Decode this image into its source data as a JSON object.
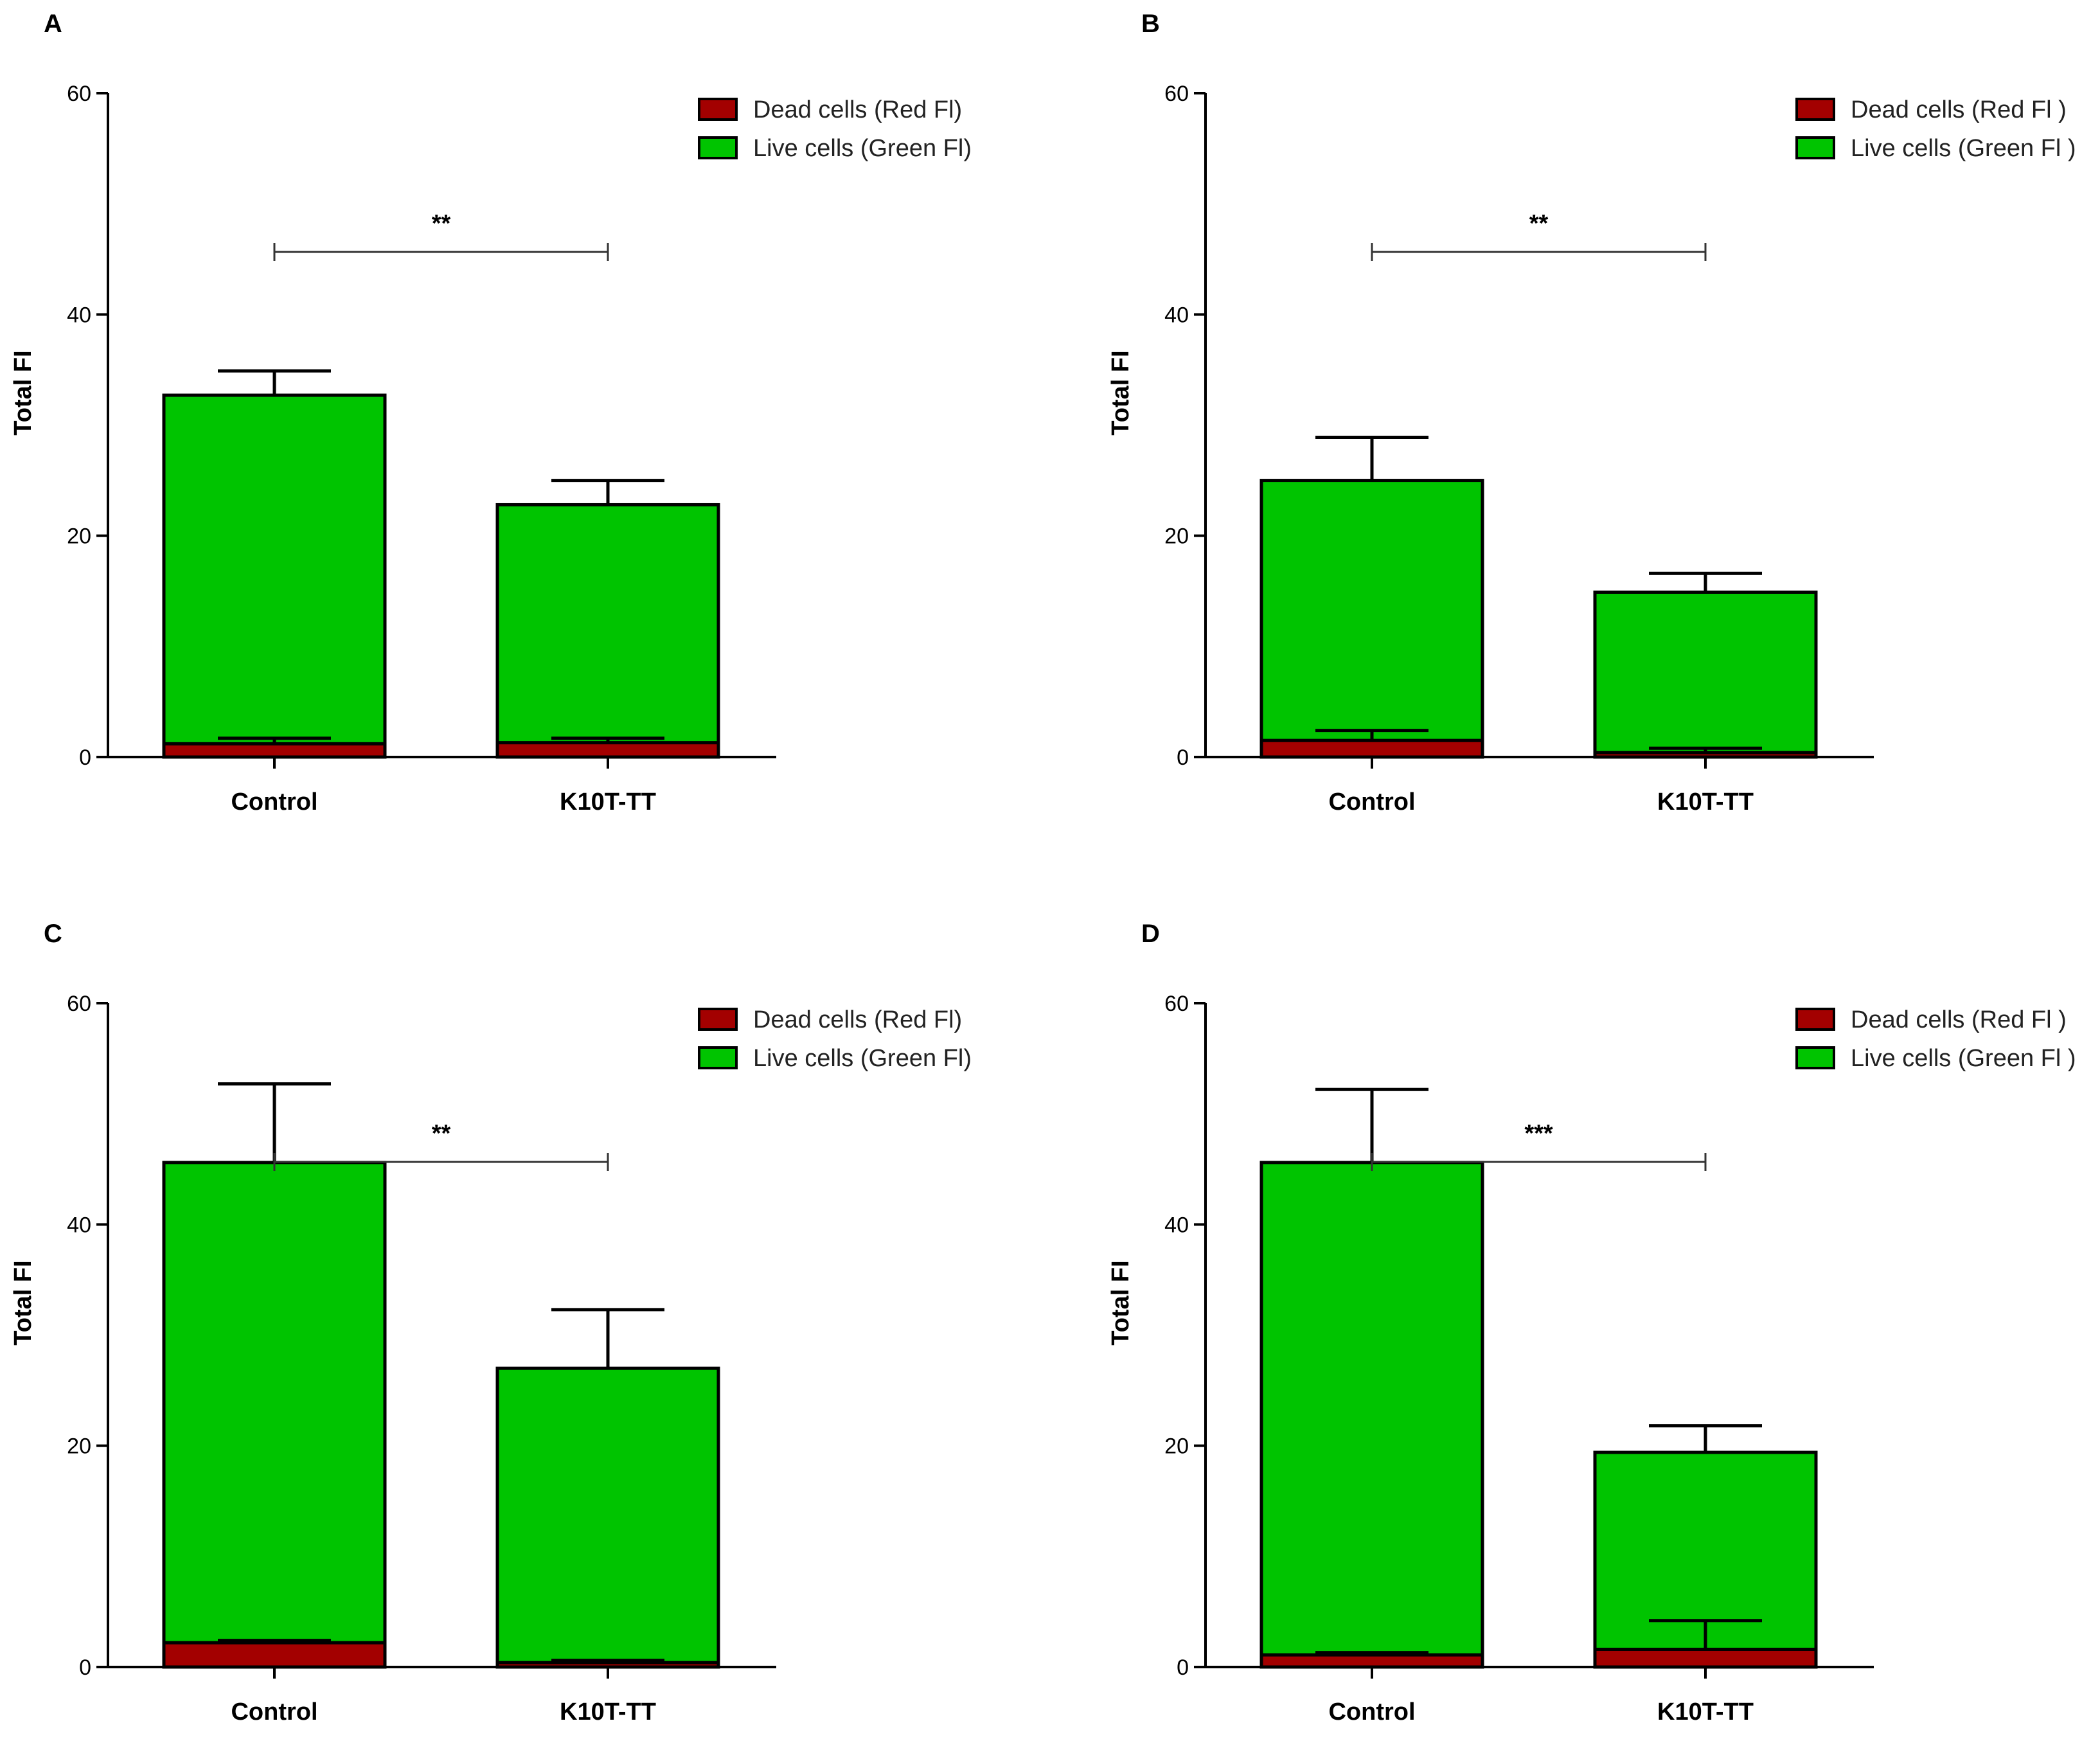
{
  "colors": {
    "dead": "#a30000",
    "live": "#00c400",
    "axis": "#000000",
    "sig_bracket": "#333333"
  },
  "chart_data": [
    {
      "panel": "A",
      "type": "bar",
      "stacked": true,
      "categories": [
        "Control",
        "K10T-TT"
      ],
      "ylabel": "Total FI",
      "ylim": [
        0,
        60
      ],
      "yticks": [
        0,
        20,
        40,
        60
      ],
      "series": [
        {
          "name": "Dead cells (Red Fl)",
          "color_key": "dead",
          "values": [
            1.2,
            1.3
          ],
          "errors": [
            0.5,
            0.4
          ]
        },
        {
          "name": "Live cells (Green Fl)",
          "color_key": "live",
          "values": [
            31.5,
            21.5
          ],
          "errors": [
            2.2,
            2.2
          ]
        }
      ],
      "significance": "**",
      "legend": "top-right"
    },
    {
      "panel": "B",
      "type": "bar",
      "stacked": true,
      "categories": [
        "Control",
        "K10T-TT"
      ],
      "ylabel": "Total FI",
      "ylim": [
        0,
        60
      ],
      "yticks": [
        0,
        20,
        40,
        60
      ],
      "series": [
        {
          "name": "Dead cells (Red Fl )",
          "color_key": "dead",
          "values": [
            1.5,
            0.4
          ],
          "errors": [
            0.9,
            0.4
          ]
        },
        {
          "name": "Live cells (Green Fl )",
          "color_key": "live",
          "values": [
            23.5,
            14.5
          ],
          "errors": [
            3.9,
            1.7
          ]
        }
      ],
      "significance": "**",
      "legend": "top-right"
    },
    {
      "panel": "C",
      "type": "bar",
      "stacked": true,
      "categories": [
        "Control",
        "K10T-TT"
      ],
      "ylabel": "Total FI",
      "ylim": [
        0,
        60
      ],
      "yticks": [
        0,
        20,
        40,
        60
      ],
      "series": [
        {
          "name": "Dead cells (Red Fl)",
          "color_key": "dead",
          "values": [
            2.2,
            0.4
          ],
          "errors": [
            0.2,
            0.2
          ]
        },
        {
          "name": "Live cells (Green Fl)",
          "color_key": "live",
          "values": [
            43.4,
            26.6
          ],
          "errors": [
            7.1,
            5.3
          ]
        }
      ],
      "significance": "**",
      "legend": "top-right"
    },
    {
      "panel": "D",
      "type": "bar",
      "stacked": true,
      "categories": [
        "Control",
        "K10T-TT"
      ],
      "ylabel": "Total FI",
      "ylim": [
        0,
        60
      ],
      "yticks": [
        0,
        20,
        40,
        60
      ],
      "series": [
        {
          "name": "Dead cells (Red Fl )",
          "color_key": "dead",
          "values": [
            1.1,
            1.6
          ],
          "errors": [
            0.2,
            2.6
          ]
        },
        {
          "name": "Live cells (Green Fl )",
          "color_key": "live",
          "values": [
            44.5,
            17.8
          ],
          "errors": [
            6.6,
            2.4
          ]
        }
      ],
      "significance": "***",
      "legend": "top-right"
    }
  ]
}
